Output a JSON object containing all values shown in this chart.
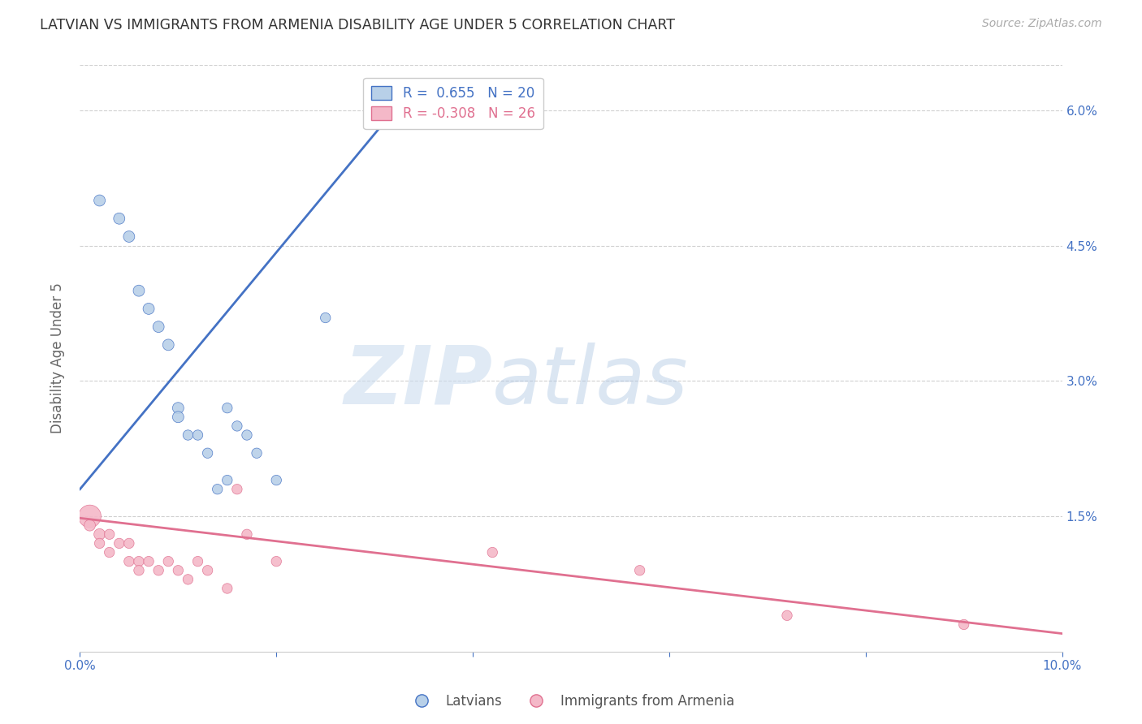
{
  "title": "LATVIAN VS IMMIGRANTS FROM ARMENIA DISABILITY AGE UNDER 5 CORRELATION CHART",
  "source": "Source: ZipAtlas.com",
  "ylabel": "Disability Age Under 5",
  "xlim": [
    0.0,
    0.1
  ],
  "ylim": [
    0.0,
    0.065
  ],
  "xticks": [
    0.0,
    0.02,
    0.04,
    0.06,
    0.08,
    0.1
  ],
  "yticks": [
    0.0,
    0.015,
    0.03,
    0.045,
    0.06
  ],
  "ytick_labels": [
    "",
    "1.5%",
    "3.0%",
    "4.5%",
    "6.0%"
  ],
  "xtick_labels": [
    "0.0%",
    "",
    "",
    "",
    "",
    "10.0%"
  ],
  "latvian_R": 0.655,
  "latvian_N": 20,
  "armenia_R": -0.308,
  "armenia_N": 26,
  "latvian_color": "#b8d0e8",
  "latvian_line_color": "#4472c4",
  "armenia_color": "#f4b8c8",
  "armenia_line_color": "#e07090",
  "legend_label_latvian": "Latvians",
  "legend_label_armenia": "Immigrants from Armenia",
  "watermark_zip": "ZIP",
  "watermark_atlas": "atlas",
  "latvian_x": [
    0.002,
    0.004,
    0.005,
    0.006,
    0.007,
    0.008,
    0.009,
    0.01,
    0.01,
    0.011,
    0.012,
    0.013,
    0.014,
    0.015,
    0.015,
    0.016,
    0.017,
    0.018,
    0.02,
    0.025
  ],
  "latvian_y": [
    0.05,
    0.048,
    0.046,
    0.04,
    0.038,
    0.036,
    0.034,
    0.027,
    0.026,
    0.024,
    0.024,
    0.022,
    0.018,
    0.019,
    0.027,
    0.025,
    0.024,
    0.022,
    0.019,
    0.037
  ],
  "latvian_sizes": [
    100,
    100,
    100,
    100,
    100,
    100,
    100,
    100,
    100,
    80,
    80,
    80,
    80,
    80,
    80,
    80,
    80,
    80,
    80,
    80
  ],
  "armenia_x": [
    0.001,
    0.001,
    0.002,
    0.002,
    0.003,
    0.003,
    0.004,
    0.005,
    0.005,
    0.006,
    0.006,
    0.007,
    0.008,
    0.009,
    0.01,
    0.011,
    0.012,
    0.013,
    0.015,
    0.016,
    0.017,
    0.02,
    0.042,
    0.057,
    0.072,
    0.09
  ],
  "armenia_y": [
    0.015,
    0.014,
    0.013,
    0.012,
    0.013,
    0.011,
    0.012,
    0.012,
    0.01,
    0.01,
    0.009,
    0.01,
    0.009,
    0.01,
    0.009,
    0.008,
    0.01,
    0.009,
    0.007,
    0.018,
    0.013,
    0.01,
    0.011,
    0.009,
    0.004,
    0.003
  ],
  "armenia_sizes": [
    400,
    100,
    100,
    80,
    80,
    80,
    80,
    80,
    80,
    80,
    80,
    80,
    80,
    80,
    80,
    80,
    80,
    80,
    80,
    80,
    80,
    80,
    80,
    80,
    80,
    80
  ],
  "blue_line_x0": 0.0,
  "blue_line_y0": 0.018,
  "blue_line_x1": 0.032,
  "blue_line_y1": 0.06,
  "pink_line_x0": 0.0,
  "pink_line_y0": 0.0148,
  "pink_line_x1": 0.1,
  "pink_line_y1": 0.002,
  "background_color": "#ffffff",
  "grid_color": "#d0d0d0",
  "axis_color": "#4472c4",
  "title_color": "#333333",
  "tick_color": "#999999"
}
